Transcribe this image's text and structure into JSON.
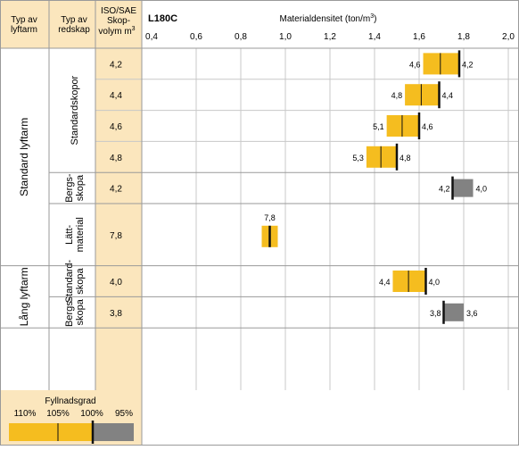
{
  "header": {
    "col1": [
      "Typ av",
      "lyftarm"
    ],
    "col2": [
      "Typ av",
      "redskap"
    ],
    "col3": [
      "ISO/SAE",
      "Skop-",
      "volym m"
    ],
    "col3_sup": "3",
    "model": "L180C",
    "axis_title": "Materialdensitet (ton/m",
    "axis_title_sup": "3",
    "axis_title_end": ")"
  },
  "chart_data": {
    "type": "bar",
    "x_ticks": [
      "0,4",
      "0,6",
      "0,8",
      "1,0",
      "1,2",
      "1,4",
      "1,6",
      "1,8",
      "2,0"
    ],
    "x_range": [
      0.4,
      2.0
    ],
    "groups": [
      {
        "arm": "Standard lyftarm",
        "tool": "Standardskopor",
        "tool_lines": [
          "Standardskopor"
        ],
        "kind": "standard",
        "rows": [
          {
            "volume": "4,2",
            "left_label": "4,6",
            "right_label": "4,2",
            "d100": 1.78
          },
          {
            "volume": "4,4",
            "left_label": "4,8",
            "right_label": "4,4",
            "d100": 1.69
          },
          {
            "volume": "4,6",
            "left_label": "5,1",
            "right_label": "4,6",
            "d100": 1.6
          },
          {
            "volume": "4,8",
            "left_label": "5,3",
            "right_label": "4,8",
            "d100": 1.5
          }
        ]
      },
      {
        "arm": "Standard lyftarm",
        "tool": "Bergsskopa",
        "tool_lines": [
          "Bergs-",
          "skopa"
        ],
        "kind": "rock",
        "rows": [
          {
            "volume": "4,2",
            "left_label": "4,2",
            "right_label": "4,0",
            "d100": 1.75
          }
        ]
      },
      {
        "arm": "Standard lyftarm",
        "tool": "Lättmaterial",
        "tool_lines": [
          "Lätt-",
          "material"
        ],
        "kind": "light",
        "rows": [
          {
            "volume": "7,8",
            "top_label": "7,8",
            "d100": 0.93
          }
        ]
      },
      {
        "arm": "Lång lyftarm",
        "tool": "Standardskopa",
        "tool_lines": [
          "Standard-",
          "skopa"
        ],
        "kind": "standard",
        "rows": [
          {
            "volume": "4,0",
            "left_label": "4,4",
            "right_label": "4,0",
            "d100": 1.63
          }
        ]
      },
      {
        "arm": "Lång lyftarm",
        "tool": "Bergsskopa",
        "tool_lines": [
          "Bergs-",
          "skopa"
        ],
        "kind": "rock",
        "rows": [
          {
            "volume": "3,8",
            "left_label": "3,8",
            "right_label": "3,6",
            "d100": 1.71
          }
        ]
      }
    ],
    "arms": [
      "Standard lyftarm",
      "Lång lyftarm"
    ]
  },
  "legend": {
    "title": "Fyllnadsgrad",
    "labels": [
      "110%",
      "105%",
      "100%",
      "95%"
    ]
  },
  "colors": {
    "header_bg": "#fbe6bd",
    "bar_yellow": "#f5bd1f",
    "bar_gray": "#828282",
    "marker": "#111111",
    "grid": "#c8c8c8",
    "divider": "#9a9a9a"
  }
}
